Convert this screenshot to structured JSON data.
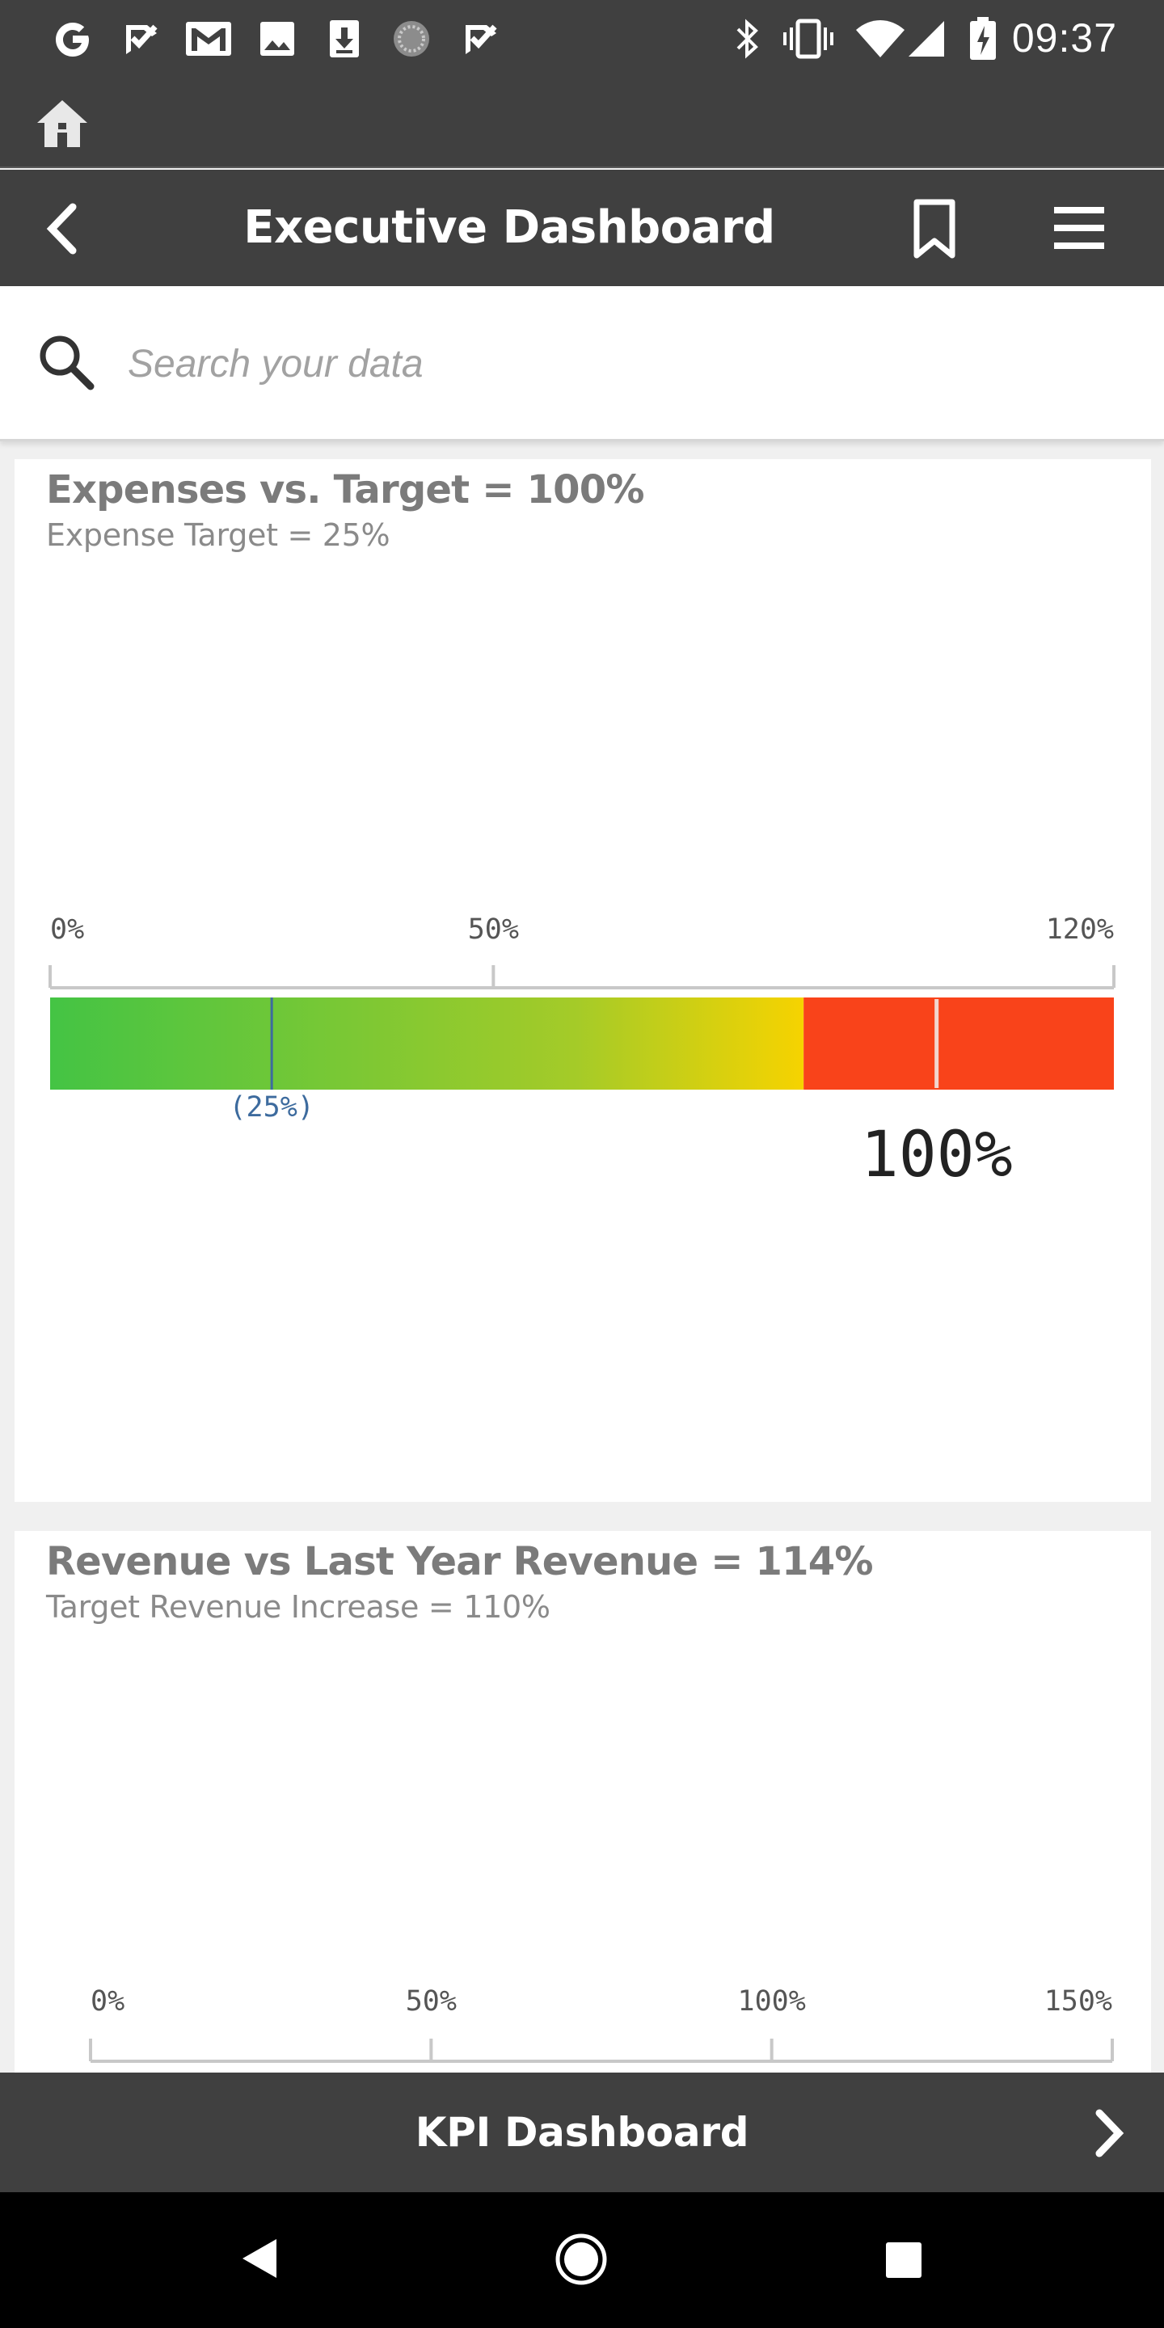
{
  "status_bar": {
    "time": "09:37",
    "left_icons": [
      "google-icon",
      "checkmark-notification-icon",
      "gmail-icon",
      "photo-icon",
      "download-icon",
      "loading-icon",
      "checkmark-notification-icon"
    ],
    "right_icons": [
      "bluetooth-icon",
      "vibrate-icon",
      "wifi-icon",
      "cellular-signal-icon",
      "battery-charging-icon"
    ]
  },
  "header": {
    "title": "Executive Dashboard",
    "icons": [
      "home-icon",
      "back-icon",
      "bookmark-icon",
      "menu-icon"
    ]
  },
  "search": {
    "placeholder": "Search your data"
  },
  "cards": [
    {
      "title": "Expenses vs. Target = 100%",
      "subtitle": "Expense Target = 25%",
      "value_label": "100%",
      "target_label": "(25%)"
    },
    {
      "title": "Revenue vs Last Year Revenue = 114%",
      "subtitle": "Target Revenue Increase = 110%"
    }
  ],
  "chart_data": [
    {
      "type": "bar",
      "orientation": "horizontal",
      "title": "Expenses vs. Target = 100%",
      "subtitle": "Expense Target = 25%",
      "axis_min": 0,
      "axis_max": 120,
      "ticks": [
        0,
        50,
        120
      ],
      "tick_labels": [
        "0%",
        "50%",
        "120%"
      ],
      "value": 100,
      "value_label": "100%",
      "target": 25,
      "target_label": "(25%)",
      "color_bands": [
        {
          "from": 0,
          "to": 85,
          "color_start": "#44c444",
          "color_end": "#f6d300"
        },
        {
          "from": 85,
          "to": 120,
          "color": "#f9431a"
        }
      ]
    },
    {
      "type": "bar",
      "orientation": "horizontal",
      "title": "Revenue vs Last Year Revenue = 114%",
      "subtitle": "Target Revenue Increase = 110%",
      "axis_min": 0,
      "axis_max": 150,
      "ticks": [
        0,
        50,
        100,
        150
      ],
      "tick_labels": [
        "0%",
        "50%",
        "100%",
        "150%"
      ]
    }
  ],
  "bottom_bar": {
    "label": "KPI Dashboard",
    "icon": "chevron-right-icon"
  },
  "system_nav": {
    "icons": [
      "nav-back-icon",
      "nav-home-icon",
      "nav-recents-icon"
    ]
  },
  "colors": {
    "bar_background": "#404040",
    "gauge_red": "#f9431a",
    "gauge_green": "#44c444",
    "gauge_yellow": "#f6d300",
    "target_marker": "#3d6b9e"
  }
}
